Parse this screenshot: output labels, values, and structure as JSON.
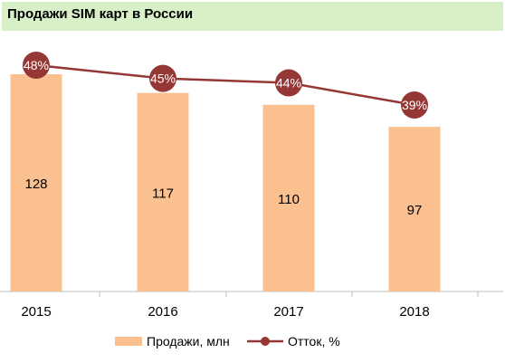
{
  "chart_data": {
    "type": "bar",
    "title": "Продажи SIM карт в России",
    "categories": [
      "2015",
      "2016",
      "2017",
      "2018"
    ],
    "series": [
      {
        "name": "Продажи, млн",
        "type": "bar",
        "values": [
          128,
          117,
          110,
          97
        ],
        "color": "#fac090"
      },
      {
        "name": "Отток, %",
        "type": "line",
        "values": [
          48,
          45,
          44,
          39
        ],
        "color": "#953735"
      }
    ],
    "data_labels": {
      "bars": [
        "128",
        "117",
        "110",
        "97"
      ],
      "line": [
        "48%",
        "45%",
        "44%",
        "39%"
      ]
    },
    "legend_position": "bottom",
    "grid": false
  }
}
